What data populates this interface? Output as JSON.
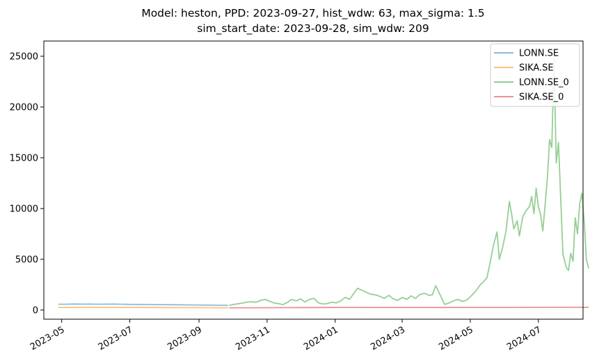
{
  "chart_data": {
    "type": "line",
    "title_line1": "Model: heston, PPD: 2023-09-27, hist_wdw: 63, max_sigma: 1.5",
    "title_line2": "sim_start_date: 2023-09-28, sim_wdw: 209",
    "xlabel": "",
    "ylabel": "",
    "xlim": [
      "2023-04-15",
      "2024-08-10"
    ],
    "ylim": [
      -900,
      26500
    ],
    "x_ticks": [
      "2023-05",
      "2023-07",
      "2023-09",
      "2023-11",
      "2024-01",
      "2024-03",
      "2024-05",
      "2024-07"
    ],
    "y_ticks": [
      0,
      5000,
      10000,
      15000,
      20000,
      25000
    ],
    "grid": false,
    "legend_position": "top-right",
    "series": [
      {
        "name": "LONN.SE",
        "color": "#1f77b4",
        "points": [
          [
            "2023-04-28",
            570
          ],
          [
            "2023-05-05",
            575
          ],
          [
            "2023-05-12",
            590
          ],
          [
            "2023-05-19",
            580
          ],
          [
            "2023-05-26",
            585
          ],
          [
            "2023-06-02",
            575
          ],
          [
            "2023-06-09",
            580
          ],
          [
            "2023-06-16",
            585
          ],
          [
            "2023-06-23",
            570
          ],
          [
            "2023-06-30",
            560
          ],
          [
            "2023-07-07",
            555
          ],
          [
            "2023-07-14",
            550
          ],
          [
            "2023-07-21",
            548
          ],
          [
            "2023-07-28",
            540
          ],
          [
            "2023-08-04",
            530
          ],
          [
            "2023-08-11",
            520
          ],
          [
            "2023-08-18",
            510
          ],
          [
            "2023-08-25",
            505
          ],
          [
            "2023-09-01",
            495
          ],
          [
            "2023-09-08",
            490
          ],
          [
            "2023-09-15",
            480
          ],
          [
            "2023-09-22",
            470
          ],
          [
            "2023-09-27",
            460
          ]
        ]
      },
      {
        "name": "SIKA.SE",
        "color": "#ff7f0e",
        "points": [
          [
            "2023-04-28",
            255
          ],
          [
            "2023-05-12",
            258
          ],
          [
            "2023-05-26",
            262
          ],
          [
            "2023-06-09",
            260
          ],
          [
            "2023-06-23",
            258
          ],
          [
            "2023-07-07",
            255
          ],
          [
            "2023-07-21",
            250
          ],
          [
            "2023-08-04",
            245
          ],
          [
            "2023-08-18",
            240
          ],
          [
            "2023-09-01",
            235
          ],
          [
            "2023-09-15",
            225
          ],
          [
            "2023-09-27",
            220
          ]
        ]
      },
      {
        "name": "LONN.SE_0",
        "color": "#2ca02c",
        "points": [
          [
            "2023-09-28",
            460
          ],
          [
            "2023-10-02",
            550
          ],
          [
            "2023-10-06",
            620
          ],
          [
            "2023-10-10",
            680
          ],
          [
            "2023-10-14",
            780
          ],
          [
            "2023-10-18",
            820
          ],
          [
            "2023-10-22",
            760
          ],
          [
            "2023-10-26",
            950
          ],
          [
            "2023-10-30",
            1050
          ],
          [
            "2023-11-03",
            880
          ],
          [
            "2023-11-07",
            700
          ],
          [
            "2023-11-11",
            640
          ],
          [
            "2023-11-15",
            530
          ],
          [
            "2023-11-19",
            740
          ],
          [
            "2023-11-23",
            1050
          ],
          [
            "2023-11-27",
            900
          ],
          [
            "2023-12-01",
            1100
          ],
          [
            "2023-12-05",
            800
          ],
          [
            "2023-12-09",
            1050
          ],
          [
            "2023-12-13",
            1150
          ],
          [
            "2023-12-17",
            700
          ],
          [
            "2023-12-21",
            600
          ],
          [
            "2023-12-25",
            640
          ],
          [
            "2023-12-29",
            780
          ],
          [
            "2024-01-02",
            700
          ],
          [
            "2024-01-06",
            900
          ],
          [
            "2024-01-10",
            1250
          ],
          [
            "2024-01-14",
            1050
          ],
          [
            "2024-01-18",
            1700
          ],
          [
            "2024-01-21",
            2150
          ],
          [
            "2024-01-25",
            1950
          ],
          [
            "2024-01-29",
            1750
          ],
          [
            "2024-02-02",
            1550
          ],
          [
            "2024-02-06",
            1500
          ],
          [
            "2024-02-10",
            1350
          ],
          [
            "2024-02-14",
            1150
          ],
          [
            "2024-02-18",
            1450
          ],
          [
            "2024-02-22",
            1100
          ],
          [
            "2024-02-26",
            950
          ],
          [
            "2024-03-01",
            1250
          ],
          [
            "2024-03-05",
            1050
          ],
          [
            "2024-03-09",
            1400
          ],
          [
            "2024-03-13",
            1150
          ],
          [
            "2024-03-17",
            1550
          ],
          [
            "2024-03-21",
            1650
          ],
          [
            "2024-03-25",
            1450
          ],
          [
            "2024-03-28",
            1500
          ],
          [
            "2024-03-31",
            2400
          ],
          [
            "2024-04-04",
            1500
          ],
          [
            "2024-04-08",
            550
          ],
          [
            "2024-04-12",
            700
          ],
          [
            "2024-04-16",
            900
          ],
          [
            "2024-04-20",
            1050
          ],
          [
            "2024-04-24",
            850
          ],
          [
            "2024-04-28",
            1000
          ],
          [
            "2024-05-02",
            1400
          ],
          [
            "2024-05-06",
            1900
          ],
          [
            "2024-05-10",
            2500
          ],
          [
            "2024-05-13",
            2800
          ],
          [
            "2024-05-16",
            3200
          ],
          [
            "2024-05-19",
            4800
          ],
          [
            "2024-05-22",
            6500
          ],
          [
            "2024-05-25",
            7700
          ],
          [
            "2024-05-27",
            5000
          ],
          [
            "2024-05-30",
            6200
          ],
          [
            "2024-06-02",
            7800
          ],
          [
            "2024-06-05",
            10700
          ],
          [
            "2024-06-07",
            9500
          ],
          [
            "2024-06-09",
            8000
          ],
          [
            "2024-06-12",
            8800
          ],
          [
            "2024-06-14",
            7300
          ],
          [
            "2024-06-17",
            9200
          ],
          [
            "2024-06-20",
            9800
          ],
          [
            "2024-06-23",
            10200
          ],
          [
            "2024-06-25",
            11200
          ],
          [
            "2024-06-27",
            9500
          ],
          [
            "2024-06-29",
            12000
          ],
          [
            "2024-07-01",
            10200
          ],
          [
            "2024-07-03",
            9400
          ],
          [
            "2024-07-05",
            7800
          ],
          [
            "2024-07-07",
            10300
          ],
          [
            "2024-07-09",
            13000
          ],
          [
            "2024-07-11",
            16800
          ],
          [
            "2024-07-13",
            16000
          ],
          [
            "2024-07-15",
            24800
          ],
          [
            "2024-07-17",
            14500
          ],
          [
            "2024-07-19",
            16500
          ],
          [
            "2024-07-21",
            11000
          ],
          [
            "2024-07-23",
            5500
          ],
          [
            "2024-07-26",
            4200
          ],
          [
            "2024-07-28",
            3900
          ],
          [
            "2024-07-30",
            5600
          ],
          [
            "2024-08-01",
            4800
          ],
          [
            "2024-08-03",
            9100
          ],
          [
            "2024-08-05",
            7500
          ],
          [
            "2024-08-07",
            10500
          ],
          [
            "2024-08-09",
            11500
          ],
          [
            "2024-08-11",
            8800
          ],
          [
            "2024-08-13",
            5000
          ],
          [
            "2024-08-15",
            4100
          ]
        ]
      },
      {
        "name": "SIKA.SE_0",
        "color": "#d62728",
        "points": [
          [
            "2023-09-28",
            220
          ],
          [
            "2023-10-15",
            225
          ],
          [
            "2023-11-01",
            230
          ],
          [
            "2023-11-15",
            240
          ],
          [
            "2023-12-01",
            245
          ],
          [
            "2023-12-20",
            250
          ],
          [
            "2024-01-10",
            255
          ],
          [
            "2024-02-01",
            252
          ],
          [
            "2024-03-01",
            250
          ],
          [
            "2024-04-01",
            248
          ],
          [
            "2024-05-01",
            255
          ],
          [
            "2024-06-01",
            260
          ],
          [
            "2024-07-01",
            265
          ],
          [
            "2024-08-01",
            268
          ],
          [
            "2024-08-15",
            270
          ]
        ]
      }
    ]
  }
}
